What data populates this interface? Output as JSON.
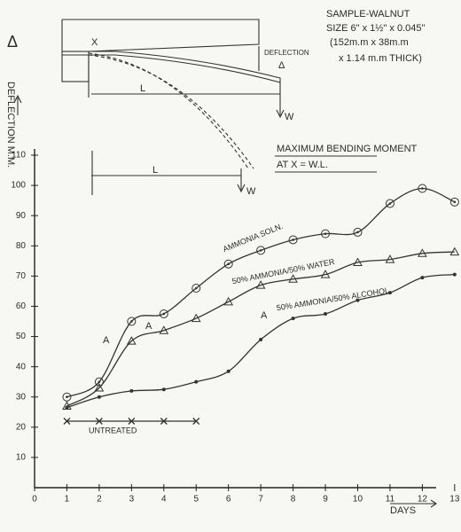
{
  "chart_data": {
    "type": "line",
    "title": "SAMPLE-WALNUT",
    "subtitle": "SIZE 6\" x 1½\" x 0.045\"",
    "size_metric_1": "(152m.m x 38m.m",
    "size_metric_2": "x 1.14 m.m THICK)",
    "moment_title": "MAXIMUM BENDING MOMENT",
    "moment_formula": "AT X = W.L.",
    "y_label": "DEFLECTION M.M.",
    "x_label": "DAYS",
    "diagram": {
      "point": "X",
      "deflection": "DEFLECTION",
      "delta": "Δ",
      "length": "L",
      "load": "W",
      "length_2": "L",
      "load_2": "W",
      "side_delta": "Δ"
    },
    "annotations": [
      "A",
      "A",
      "A"
    ],
    "x": [
      1,
      2,
      3,
      4,
      5,
      6,
      7,
      8,
      9,
      10,
      11,
      12,
      13
    ],
    "series": [
      {
        "name": "AMMONIA SOLN.",
        "color": "#333333",
        "marker": "circle-dot",
        "values": [
          30,
          35,
          55,
          57.5,
          66,
          74,
          78.5,
          82,
          84,
          84.5,
          94,
          99,
          94.5
        ]
      },
      {
        "name": "50% AMMONIA/50% WATER",
        "color": "#333333",
        "marker": "triangle",
        "values": [
          27,
          33,
          48.5,
          52,
          56,
          61.5,
          67,
          69,
          70.5,
          74.5,
          75.5,
          77.5,
          78
        ]
      },
      {
        "name": "50% AMMONIA/50% ALCOHOL",
        "color": "#333333",
        "marker": "dot",
        "values": [
          26.5,
          30,
          32,
          32.5,
          35,
          38.5,
          49,
          56,
          57.5,
          62,
          64.5,
          69.5,
          70.5
        ]
      },
      {
        "name": "UNTREATED",
        "color": "#333333",
        "marker": "x",
        "values": [
          22,
          22,
          22,
          22,
          22,
          null,
          null,
          null,
          null,
          null,
          null,
          null,
          null
        ]
      }
    ],
    "xlim": [
      0,
      13
    ],
    "xticks": [
      0,
      1,
      2,
      3,
      4,
      5,
      6,
      7,
      8,
      9,
      10,
      11,
      12,
      13
    ],
    "ylim": [
      0,
      110
    ],
    "yticks": [
      10,
      20,
      30,
      40,
      50,
      60,
      70,
      80,
      90,
      100,
      110
    ]
  }
}
